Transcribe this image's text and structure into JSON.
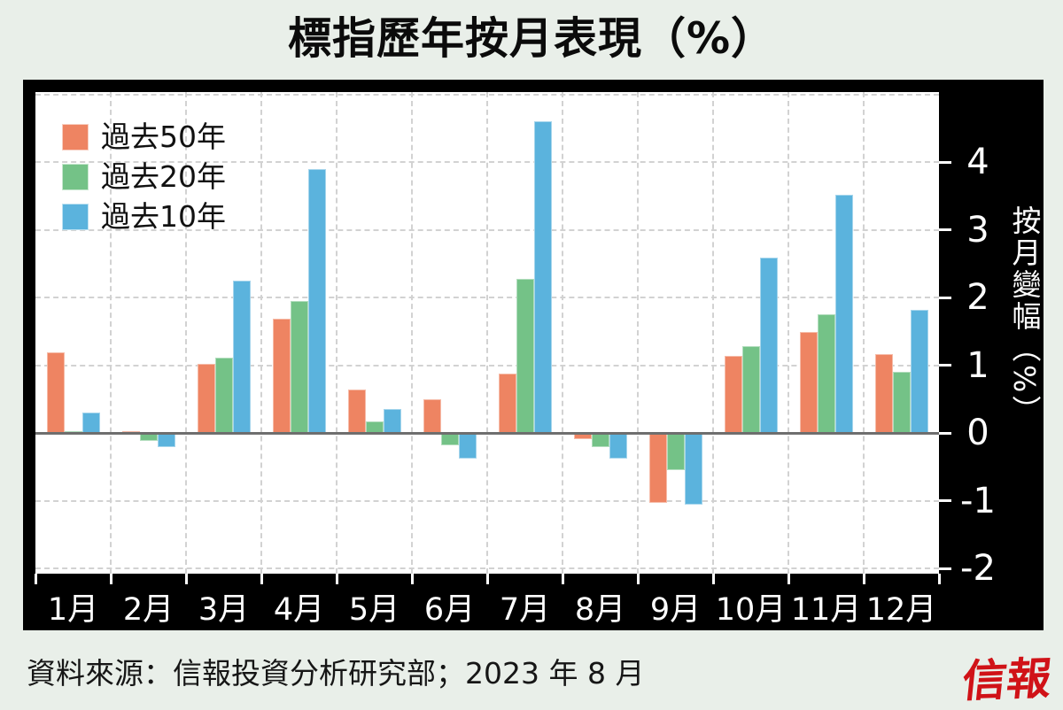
{
  "title": "標指歷年按月表現（%）",
  "source_note": "資料來源：信報投資分析研究部；2023 年 8 月",
  "logo_text": "信報",
  "colors": {
    "background": "#e9efe9",
    "frame": "#000000",
    "plot_background": "#ffffff",
    "gridline": "#d2d2d2",
    "zero_line": "#6e6e6e",
    "axis_text": "#ffffff",
    "legend_text": "#111111",
    "logo_red": "#d01217",
    "series_past50": "#ee8462",
    "series_past20": "#74c287",
    "series_past10": "#5bb3dd"
  },
  "chart_data": {
    "type": "bar",
    "title": "標指歷年按月表現（%）",
    "categories": [
      "1月",
      "2月",
      "3月",
      "4月",
      "5月",
      "6月",
      "7月",
      "8月",
      "9月",
      "10月",
      "11月",
      "12月"
    ],
    "series": [
      {
        "name": "過去50年",
        "color": "#ee8462",
        "values": [
          1.19,
          0.03,
          1.02,
          1.69,
          0.65,
          0.5,
          0.88,
          -0.09,
          -1.03,
          1.14,
          1.49,
          1.17
        ]
      },
      {
        "name": "過去20年",
        "color": "#74c287",
        "values": [
          0.02,
          -0.12,
          1.12,
          1.95,
          0.17,
          -0.18,
          2.28,
          -0.2,
          -0.54,
          1.29,
          1.75,
          0.91
        ]
      },
      {
        "name": "過去10年",
        "color": "#5bb3dd",
        "values": [
          0.3,
          -0.2,
          2.25,
          3.9,
          0.36,
          -0.37,
          4.6,
          -0.37,
          -1.06,
          2.59,
          3.52,
          1.82
        ]
      }
    ],
    "xlabel": "",
    "ylabel": "按月變幅（%）",
    "ylim": [
      -2.1,
      5.0
    ],
    "yticks_labeled": [
      4,
      3,
      2,
      1,
      0,
      -1,
      -2
    ],
    "gridlines_at": [
      5,
      4,
      3,
      2,
      1,
      -1,
      -2
    ],
    "legend_position": "top-left",
    "grid": "dashed"
  }
}
